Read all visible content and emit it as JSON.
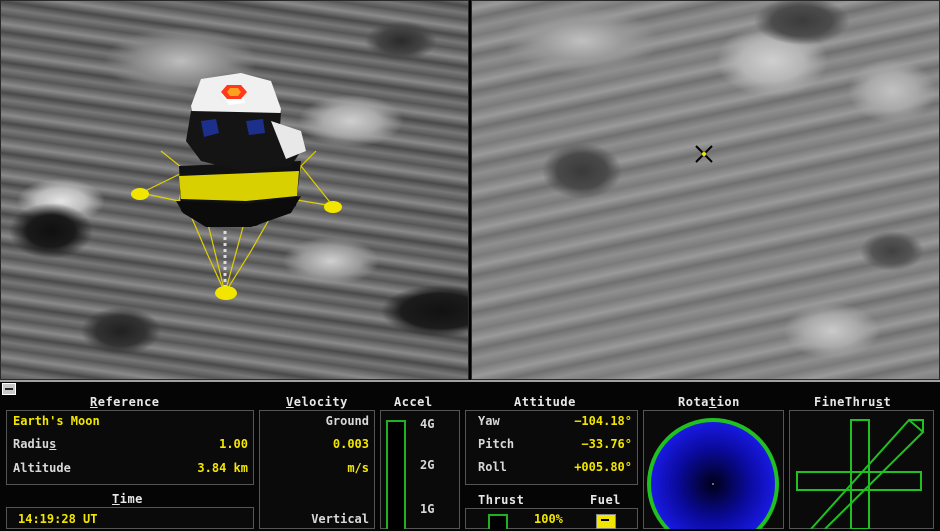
{
  "views": {
    "external_view": {
      "name": "external-camera-view"
    },
    "down_view": {
      "name": "downward-camera-view"
    }
  },
  "panel": {
    "reference": {
      "title_prefix": "R",
      "title_rest": "eference",
      "body": "Earth's Moon",
      "radius_label_a": "Radiu",
      "radius_label_b": "s",
      "radius_value": "1.00",
      "altitude_label": "Altitude",
      "altitude_value": "3.84 km"
    },
    "time": {
      "title_prefix": "T",
      "title_rest": "ime",
      "value": "14:19:28 UT"
    },
    "velocity": {
      "title_prefix": "V",
      "title_rest": "elocity",
      "ground_label": "Ground",
      "ground_value": "0.003",
      "unit": "m/s",
      "vertical_label": "Vertical"
    },
    "accel": {
      "title": "Accel",
      "ticks": [
        "4G",
        "2G",
        "1G"
      ]
    },
    "attitude": {
      "title": "Attitude",
      "yaw_label": "Yaw",
      "yaw_value": "−104.18°",
      "pitch_label": "Pitch",
      "pitch_value": "−33.76°",
      "roll_label": "Roll",
      "roll_value": "+005.80°"
    },
    "thrust": {
      "title": "Thrust",
      "value": "100%"
    },
    "fuel": {
      "title": "Fuel"
    },
    "rotation": {
      "title_a": "Rota",
      "title_u": "t",
      "title_b": "ion"
    },
    "finethrust": {
      "title_a": "FineThru",
      "title_u": "s",
      "title_b": "t"
    }
  },
  "colors": {
    "accent_yellow": "#f2e600",
    "rotation_blue": "#1010d0",
    "rotation_ring": "#20c020"
  }
}
